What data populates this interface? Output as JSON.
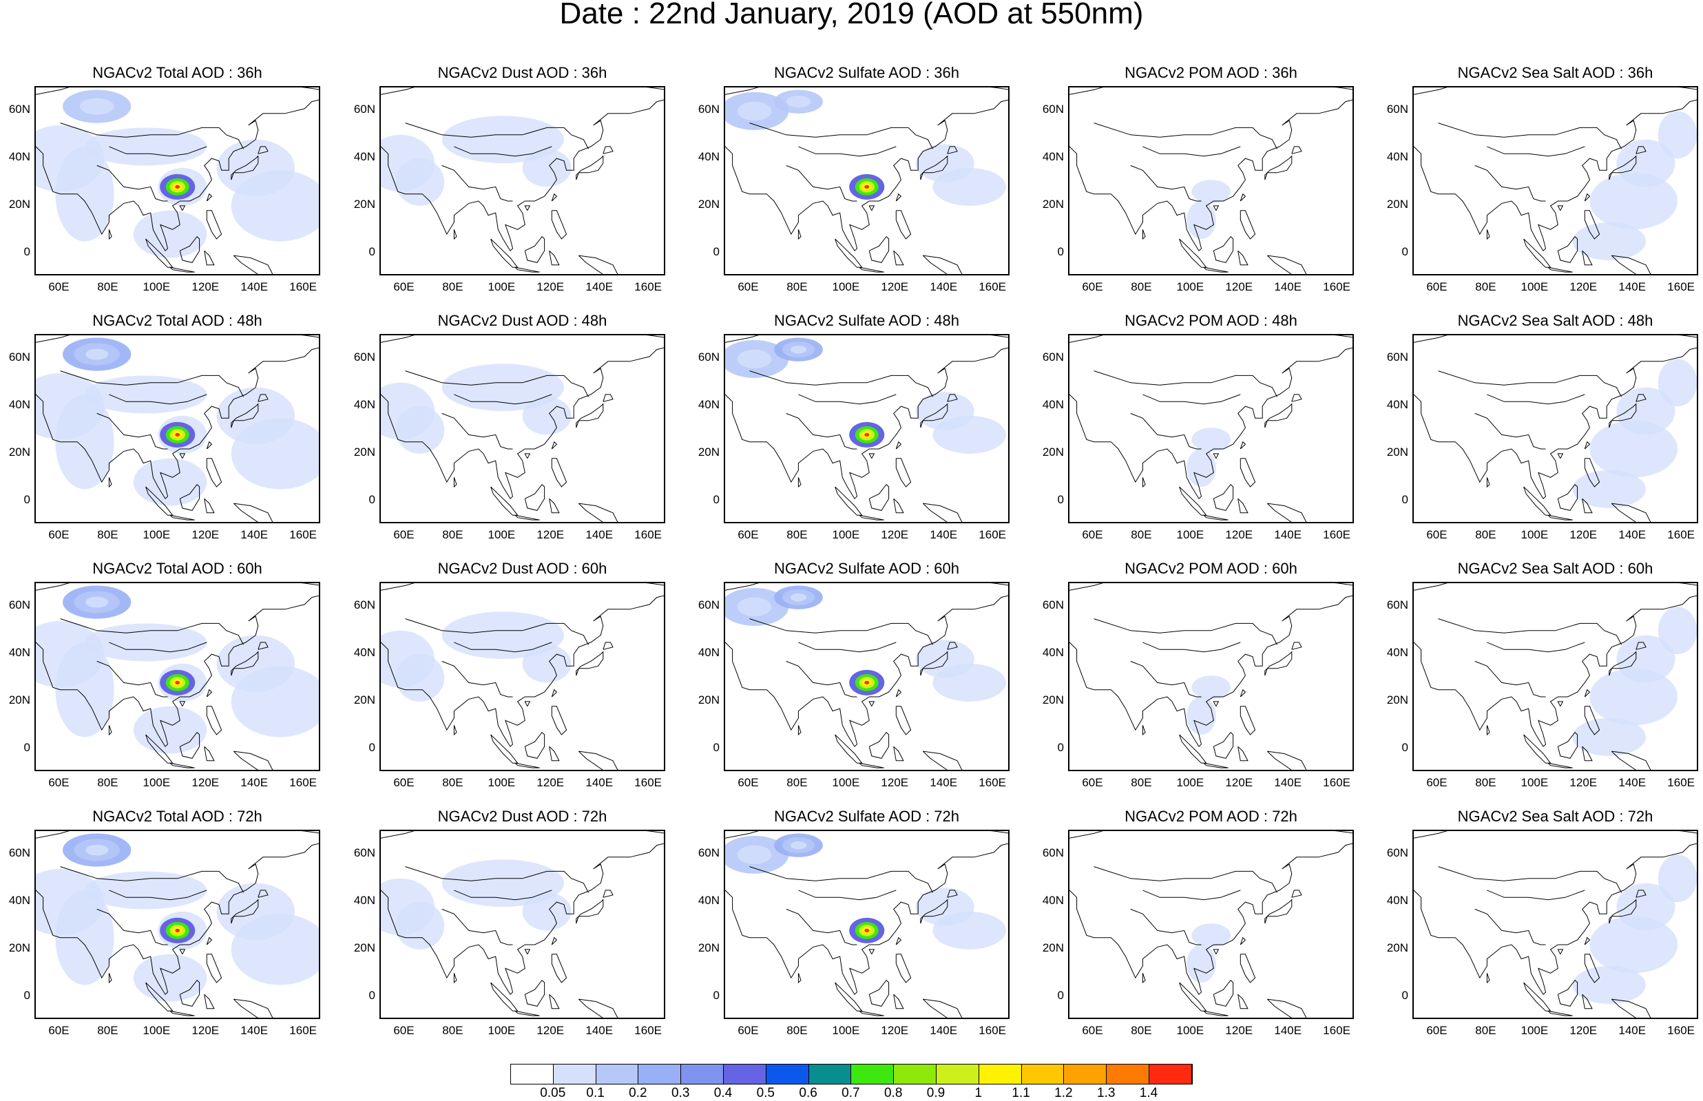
{
  "title": "Date : 22nd January, 2019 (AOD at 550nm)",
  "panels": [
    [
      "NGACv2 Total AOD : 36h",
      "NGACv2 Dust AOD : 36h",
      "NGACv2 Sulfate AOD : 36h",
      "NGACv2 POM AOD : 36h",
      "NGACv2 Sea Salt AOD : 36h"
    ],
    [
      "NGACv2 Total AOD : 48h",
      "NGACv2 Dust AOD : 48h",
      "NGACv2 Sulfate AOD : 48h",
      "NGACv2 POM AOD : 48h",
      "NGACv2 Sea Salt AOD : 48h"
    ],
    [
      "NGACv2 Total AOD : 60h",
      "NGACv2 Dust AOD : 60h",
      "NGACv2 Sulfate AOD : 60h",
      "NGACv2 POM AOD : 60h",
      "NGACv2 Sea Salt AOD : 60h"
    ],
    [
      "NGACv2 Total AOD : 72h",
      "NGACv2 Dust AOD : 72h",
      "NGACv2 Sulfate AOD : 72h",
      "NGACv2 POM AOD : 72h",
      "NGACv2 Sea Salt  AOD : 72h"
    ]
  ],
  "lat_ticks": [
    "60N",
    "40N",
    "20N",
    "0"
  ],
  "lon_ticks": [
    "60E",
    "80E",
    "100E",
    "120E",
    "140E",
    "160E"
  ],
  "colorbar": {
    "colors": [
      "#ffffff",
      "#d5e0fb",
      "#b6c8f8",
      "#98b0f5",
      "#7f94ef",
      "#6464e4",
      "#0c58ec",
      "#088e8e",
      "#3ee80e",
      "#8ee80a",
      "#cef01a",
      "#fff200",
      "#ffc700",
      "#ffa200",
      "#ff7a00",
      "#ff2a10"
    ],
    "labels": [
      "0.05",
      "0.1",
      "0.2",
      "0.3",
      "0.4",
      "0.5",
      "0.6",
      "0.7",
      "0.8",
      "0.9",
      "1",
      "1.1",
      "1.2",
      "1.3",
      "1.4"
    ]
  }
}
